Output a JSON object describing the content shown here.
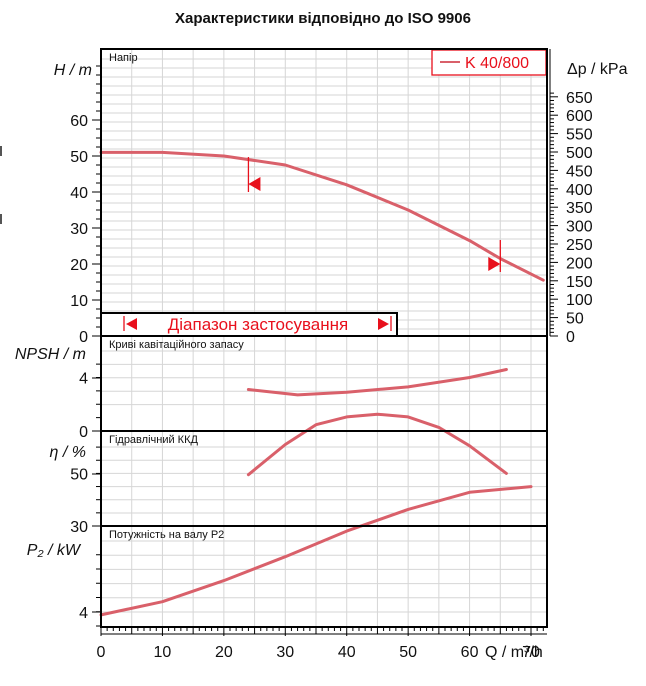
{
  "title": "Характеристики відповідно до ISO 9906",
  "legend": {
    "label": "K 40/800"
  },
  "colors": {
    "curve": "#d9606a",
    "marker": "#e8101c",
    "grid": "#d6d6d6",
    "axis": "#000000"
  },
  "range_label": "Діапазон застосування",
  "x_axis": {
    "label": "Q / m³/h",
    "ticks": [
      0,
      10,
      20,
      30,
      40,
      50,
      60,
      70
    ]
  },
  "panels": {
    "head": {
      "name": "Напір",
      "ylabel": "H / m",
      "ticks": [
        0,
        10,
        20,
        30,
        40,
        50,
        60
      ],
      "right_label": "Δp / kPa",
      "right_ticks": [
        0,
        50,
        100,
        150,
        200,
        250,
        300,
        350,
        400,
        450,
        500,
        550,
        600,
        650
      ]
    },
    "npsh": {
      "name": "Криві кавітаційного запасу",
      "ylabel": "NPSH / m",
      "ticks": [
        0,
        4
      ]
    },
    "eff": {
      "name": "Гідравлічний ККД",
      "ylabel": "η / %",
      "ticks": [
        30,
        50
      ]
    },
    "power": {
      "name": "Потужність на валу P2",
      "ylabel": "P₂ / kW",
      "ticks": [
        4
      ]
    }
  },
  "chart_data": {
    "type": "line",
    "title": "Характеристики відповідно до ISO 9906",
    "xlabel": "Q / m³/h",
    "xlim": [
      0,
      72
    ],
    "series_name": "K 40/800",
    "application_range": [
      24,
      65
    ],
    "head": {
      "ylabel": "H / m",
      "ylim": [
        0,
        75
      ],
      "x": [
        0,
        10,
        20,
        30,
        40,
        50,
        60,
        65,
        72
      ],
      "y": [
        51,
        51,
        50,
        47.5,
        42,
        35,
        26.5,
        21.5,
        15.5
      ]
    },
    "npsh": {
      "ylabel": "NPSH / m",
      "ylim": [
        0,
        8
      ],
      "x": [
        24,
        32,
        40,
        50,
        60,
        66
      ],
      "y": [
        3.1,
        2.7,
        2.9,
        3.3,
        4.0,
        4.6
      ]
    },
    "efficiency": {
      "ylabel": "η / %",
      "ylim": [
        30,
        85
      ],
      "x": [
        24,
        30,
        35,
        40,
        45,
        50,
        55,
        60,
        66
      ],
      "y": [
        49.5,
        61,
        68.5,
        71.5,
        72.5,
        71.5,
        67.5,
        60.5,
        50
      ]
    },
    "power": {
      "ylabel": "P₂ / kW",
      "ylim": [
        3.75,
        6.25
      ],
      "x": [
        0,
        10,
        20,
        30,
        40,
        50,
        60,
        70
      ],
      "y": [
        3.95,
        4.18,
        4.55,
        4.97,
        5.42,
        5.8,
        6.1,
        6.2
      ]
    }
  }
}
